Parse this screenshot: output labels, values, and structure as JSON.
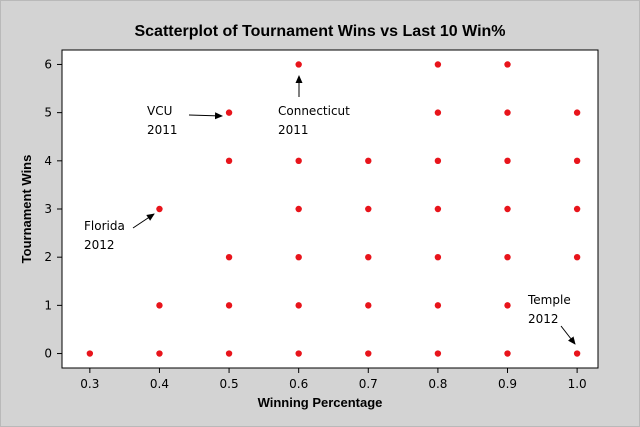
{
  "chart_data": {
    "type": "scatter",
    "title": "Scatterplot of Tournament Wins vs Last 10 Win%",
    "xlabel": "Winning Percentage",
    "ylabel": "Tournament Wins",
    "xlim": [
      0.26,
      1.03
    ],
    "ylim": [
      -0.3,
      6.3
    ],
    "xticks": [
      0.3,
      0.4,
      0.5,
      0.6,
      0.7,
      0.8,
      0.9,
      1.0
    ],
    "xtick_labels": [
      "0.3",
      "0.4",
      "0.5",
      "0.6",
      "0.7",
      "0.8",
      "0.9",
      "1.0"
    ],
    "yticks": [
      0,
      1,
      2,
      3,
      4,
      5,
      6
    ],
    "ytick_labels": [
      "0",
      "1",
      "2",
      "3",
      "4",
      "5",
      "6"
    ],
    "grid": false,
    "marker_color": "#e8141b",
    "points": [
      {
        "x": 0.3,
        "y": 0
      },
      {
        "x": 0.4,
        "y": 0
      },
      {
        "x": 0.4,
        "y": 1
      },
      {
        "x": 0.4,
        "y": 3
      },
      {
        "x": 0.5,
        "y": 0
      },
      {
        "x": 0.5,
        "y": 1
      },
      {
        "x": 0.5,
        "y": 2
      },
      {
        "x": 0.5,
        "y": 4
      },
      {
        "x": 0.5,
        "y": 5
      },
      {
        "x": 0.6,
        "y": 0
      },
      {
        "x": 0.6,
        "y": 1
      },
      {
        "x": 0.6,
        "y": 2
      },
      {
        "x": 0.6,
        "y": 3
      },
      {
        "x": 0.6,
        "y": 4
      },
      {
        "x": 0.6,
        "y": 6
      },
      {
        "x": 0.7,
        "y": 0
      },
      {
        "x": 0.7,
        "y": 1
      },
      {
        "x": 0.7,
        "y": 2
      },
      {
        "x": 0.7,
        "y": 3
      },
      {
        "x": 0.7,
        "y": 4
      },
      {
        "x": 0.8,
        "y": 0
      },
      {
        "x": 0.8,
        "y": 1
      },
      {
        "x": 0.8,
        "y": 2
      },
      {
        "x": 0.8,
        "y": 3
      },
      {
        "x": 0.8,
        "y": 4
      },
      {
        "x": 0.8,
        "y": 5
      },
      {
        "x": 0.8,
        "y": 6
      },
      {
        "x": 0.9,
        "y": 0
      },
      {
        "x": 0.9,
        "y": 1
      },
      {
        "x": 0.9,
        "y": 2
      },
      {
        "x": 0.9,
        "y": 3
      },
      {
        "x": 0.9,
        "y": 4
      },
      {
        "x": 0.9,
        "y": 5
      },
      {
        "x": 0.9,
        "y": 6
      },
      {
        "x": 1.0,
        "y": 0
      },
      {
        "x": 1.0,
        "y": 2
      },
      {
        "x": 1.0,
        "y": 3
      },
      {
        "x": 1.0,
        "y": 4
      },
      {
        "x": 1.0,
        "y": 5
      }
    ],
    "annotations": [
      {
        "id": "vcu",
        "line1": "VCU",
        "line2": "2011",
        "point": {
          "x": 0.5,
          "y": 5
        }
      },
      {
        "id": "connecticut",
        "line1": "Connecticut",
        "line2": "2011",
        "point": {
          "x": 0.6,
          "y": 6
        }
      },
      {
        "id": "florida",
        "line1": "Florida",
        "line2": "2012",
        "point": {
          "x": 0.4,
          "y": 3
        }
      },
      {
        "id": "temple",
        "line1": "Temple",
        "line2": "2012",
        "point": {
          "x": 1.0,
          "y": 0
        }
      }
    ]
  }
}
